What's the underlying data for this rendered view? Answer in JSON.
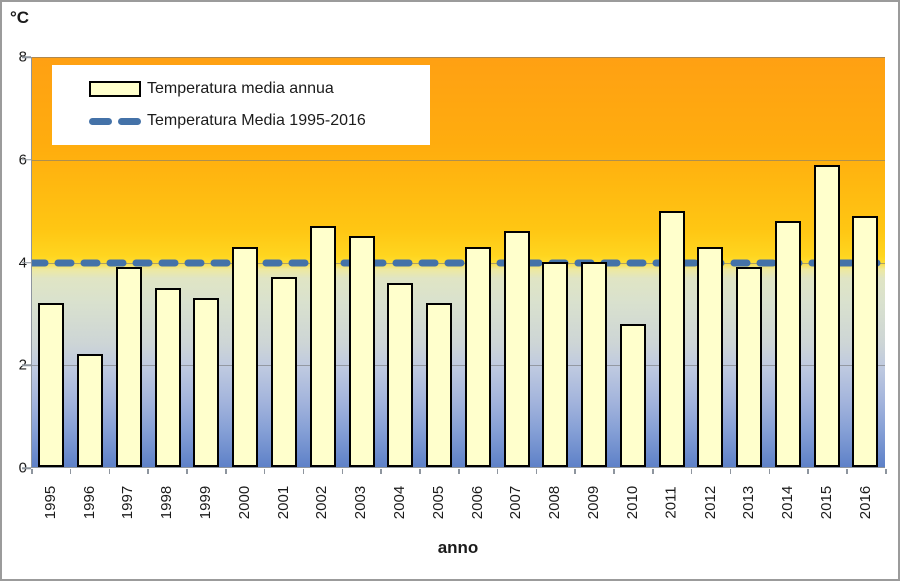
{
  "unit_label": "°C",
  "x_axis_title": "anno",
  "legend": {
    "items": [
      {
        "label": "Temperatura media annua",
        "swatch": "bar"
      },
      {
        "label": "Temperatura Media 1995-2016",
        "swatch": "dashed-line"
      }
    ]
  },
  "chart_data": {
    "type": "bar",
    "title": "",
    "categories": [
      "1995",
      "1996",
      "1997",
      "1998",
      "1999",
      "2000",
      "2001",
      "2002",
      "2003",
      "2004",
      "2005",
      "2006",
      "2007",
      "2008",
      "2009",
      "2010",
      "2011",
      "2012",
      "2013",
      "2014",
      "2015",
      "2016"
    ],
    "series": [
      {
        "name": "Temperatura media annua",
        "values": [
          3.2,
          2.2,
          3.9,
          3.5,
          3.3,
          4.3,
          3.7,
          4.7,
          4.5,
          3.6,
          3.2,
          4.3,
          4.6,
          4.0,
          4.0,
          2.8,
          5.0,
          4.3,
          3.9,
          4.8,
          5.9,
          4.9
        ]
      }
    ],
    "reference_line": {
      "name": "Temperatura Media 1995-2016",
      "value": 4.0,
      "style": "dashed"
    },
    "xlabel": "anno",
    "ylabel": "°C",
    "ylim": [
      0,
      8
    ],
    "y_ticks": [
      0,
      2,
      4,
      6,
      8
    ],
    "grid": true,
    "legend_position": "top-left"
  },
  "colors": {
    "bar_fill": "#FFFFCC",
    "bar_border": "#000000",
    "mean_line": "#4472A8",
    "axis": "#8E959E",
    "gridline": "rgba(120,120,120,0.6)",
    "text": "#1B1B1B",
    "frame_border": "#9B9B9B",
    "plot_gradient_stops": [
      "#FFA013 0%",
      "#FFAD0E 22%",
      "#FFC613 42%",
      "#FFD51F 48.5%",
      "#FFDC2E 50%",
      "#EEE9A0 51.8%",
      "#E0E5C4 54%",
      "#D9E1CE 60%",
      "#CDD5D6 70%",
      "#BFCAE0 75.5%",
      "#A3B4DC 84%",
      "#86A0D6 91%",
      "#5E81C8 100%"
    ]
  }
}
